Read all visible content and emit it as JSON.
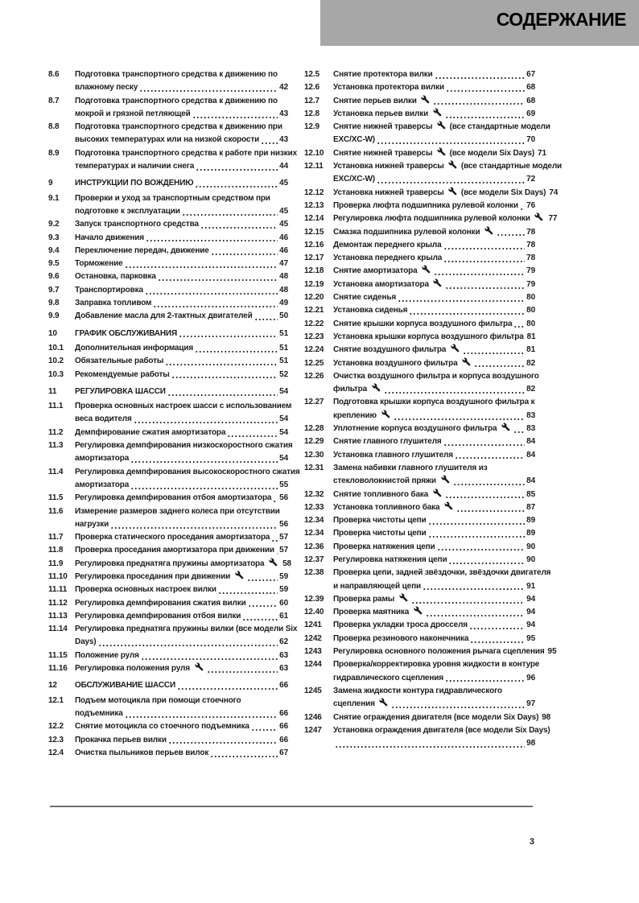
{
  "header": {
    "title": "СОДЕРЖАНИЕ"
  },
  "footer": {
    "page_number": "3"
  },
  "colors": {
    "header_bar": "#a7a7a7",
    "text": "#1b1b1b",
    "footer_rule": "#6f6f6f"
  },
  "icons": {
    "wrench": "wrench-icon"
  },
  "toc": {
    "columns": [
      {
        "entries": [
          {
            "num": "8.6",
            "lines": [
              "Подготовка транспортного средства к движению по",
              "влажному песку"
            ],
            "page": "42"
          },
          {
            "num": "8.7",
            "lines": [
              "Подготовка транспортного средства к движению по",
              "мокрой и грязной петляющей"
            ],
            "page": "43"
          },
          {
            "num": "8.8",
            "lines": [
              "Подготовка транспортного средства к движению при",
              "высоких температурах или на низкой скорости"
            ],
            "page": "43"
          },
          {
            "num": "8.9",
            "lines": [
              "Подготовка транспортного средства к работе при низких",
              "температурах и наличии снега"
            ],
            "page": "44"
          },
          {
            "num": "9",
            "lines": [
              "ИНСТРУКЦИИ ПО ВОЖДЕНИЮ"
            ],
            "page": "45",
            "chapter": true
          },
          {
            "num": "9.1",
            "lines": [
              "Проверки и уход за транспортным средством при",
              "подготовке к эксплуатации"
            ],
            "page": "45"
          },
          {
            "num": "9.2",
            "lines": [
              "Запуск транспортного средства"
            ],
            "page": "45"
          },
          {
            "num": "9.3",
            "lines": [
              "Начало движения"
            ],
            "page": "46"
          },
          {
            "num": "9.4",
            "lines": [
              "Переключение передач, движение"
            ],
            "page": "46"
          },
          {
            "num": "9.5",
            "lines": [
              "Торможение"
            ],
            "page": "47"
          },
          {
            "num": "9.6",
            "lines": [
              "Остановка, парковка"
            ],
            "page": "48"
          },
          {
            "num": "9.7",
            "lines": [
              "Транспортировка"
            ],
            "page": "48"
          },
          {
            "num": "9.8",
            "lines": [
              "Заправка топливом"
            ],
            "page": "49"
          },
          {
            "num": "9.9",
            "lines": [
              "Добавление масла для 2-тактных двигателей"
            ],
            "page": "50"
          },
          {
            "num": "10",
            "lines": [
              "ГРАФИК ОБСЛУЖИВАНИЯ"
            ],
            "page": "51",
            "chapter": true
          },
          {
            "num": "10.1",
            "lines": [
              "Дополнительная информация"
            ],
            "page": "51"
          },
          {
            "num": "10.2",
            "lines": [
              "Обязательные работы"
            ],
            "page": "51"
          },
          {
            "num": "10.3",
            "lines": [
              "Рекомендуемые работы"
            ],
            "page": "52"
          },
          {
            "num": "11",
            "lines": [
              "РЕГУЛИРОВКА ШАССИ"
            ],
            "page": "54",
            "chapter": true
          },
          {
            "num": "11.1",
            "lines": [
              "Проверка основных настроек шасси с использованием",
              "веса водителя"
            ],
            "page": "54"
          },
          {
            "num": "11.2",
            "lines": [
              "Демпфирование сжатия амортизатора"
            ],
            "page": "54"
          },
          {
            "num": "11.3",
            "lines": [
              "Регулировка демпфирования низкоскоростного сжатия",
              "амортизатора"
            ],
            "page": "54"
          },
          {
            "num": "11.4",
            "lines": [
              "Регулировка демпфирования высокоскоростного сжатия",
              "амортизатора"
            ],
            "page": "55"
          },
          {
            "num": "11.5",
            "lines": [
              "Регулировка демпфирования отбоя амортизатора"
            ],
            "page": "56"
          },
          {
            "num": "11.6",
            "lines": [
              "Измерение размеров заднего колеса при отсутствии",
              "нагрузки"
            ],
            "page": "56"
          },
          {
            "num": "11.7",
            "lines": [
              "Проверка статического проседания амортизатора"
            ],
            "page": "57"
          },
          {
            "num": "11.8",
            "lines": [
              "Проверка проседания амортизатора при движении"
            ],
            "page": "57"
          },
          {
            "num": "11.9",
            "lines": [
              "Регулировка преднатяга пружины амортизатора 🔧"
            ],
            "page": "58"
          },
          {
            "num": "11.10",
            "lines": [
              "Регулировка проседания при движении 🔧"
            ],
            "page": "59"
          },
          {
            "num": "11.11",
            "lines": [
              "Проверка основных настроек вилки"
            ],
            "page": "59"
          },
          {
            "num": "11.12",
            "lines": [
              "Регулировка демпфирования сжатия вилки"
            ],
            "page": "60"
          },
          {
            "num": "11.13",
            "lines": [
              "Регулировка демпфирования отбоя вилки"
            ],
            "page": "61"
          },
          {
            "num": "11.14",
            "lines": [
              "Регулировка преднатяга пружины вилки (все модели Six",
              "Days)"
            ],
            "page": "62"
          },
          {
            "num": "11.15",
            "lines": [
              "Положение руля"
            ],
            "page": "63"
          },
          {
            "num": "11.16",
            "lines": [
              "Регулировка положения руля 🔧"
            ],
            "page": "63"
          },
          {
            "num": "12",
            "lines": [
              "ОБСЛУЖИВАНИЕ ШАССИ"
            ],
            "page": "66",
            "chapter": true
          },
          {
            "num": "12.1",
            "lines": [
              "Подъем мотоцикла при помощи стоечного",
              "подъемника"
            ],
            "page": "66"
          },
          {
            "num": "12.2",
            "lines": [
              "Снятие мотоцикла со стоечного подъемника"
            ],
            "page": "66"
          },
          {
            "num": "12.3",
            "lines": [
              "Прокачка перьев вилки"
            ],
            "page": "66"
          },
          {
            "num": "12.4",
            "lines": [
              "Очистка пыльников перьев вилок"
            ],
            "page": "67"
          }
        ]
      },
      {
        "entries": [
          {
            "num": "12.5",
            "lines": [
              "Снятие протектора вилки"
            ],
            "page": "67"
          },
          {
            "num": "12.6",
            "lines": [
              "Установка протектора вилки"
            ],
            "page": "68"
          },
          {
            "num": "12.7",
            "lines": [
              "Снятие перьев вилки 🔧"
            ],
            "page": "68"
          },
          {
            "num": "12.8",
            "lines": [
              "Установка перьев вилки 🔧"
            ],
            "page": "69"
          },
          {
            "num": "12.9",
            "lines": [
              "Снятие нижней траверсы 🔧 (все стандартные модели",
              "EXC/XC-W)"
            ],
            "page": "70"
          },
          {
            "num": "12.10",
            "lines": [
              "Снятие нижней траверсы 🔧 (все модели Six Days)"
            ],
            "page": "71"
          },
          {
            "num": "12.11",
            "lines": [
              "Установка нижней траверсы 🔧 (все стандартные модели",
              "EXC/XC-W)"
            ],
            "page": "72"
          },
          {
            "num": "12.12",
            "lines": [
              "Установка нижней траверсы 🔧 (все модели Six Days)"
            ],
            "page": "74"
          },
          {
            "num": "12.13",
            "lines": [
              "Проверка люфта подшипника рулевой колонки"
            ],
            "page": "76"
          },
          {
            "num": "12.14",
            "lines": [
              "Регулировка люфта подшипника рулевой колонки 🔧"
            ],
            "page": "77"
          },
          {
            "num": "12.15",
            "lines": [
              "Смазка подшипника рулевой колонки 🔧"
            ],
            "page": "78"
          },
          {
            "num": "12.16",
            "lines": [
              "Демонтаж переднего крыла"
            ],
            "page": "78"
          },
          {
            "num": "12.17",
            "lines": [
              "Установка переднего крыла"
            ],
            "page": "78"
          },
          {
            "num": "12.18",
            "lines": [
              "Снятие амортизатора 🔧"
            ],
            "page": "79"
          },
          {
            "num": "12.19",
            "lines": [
              "Установка амортизатора 🔧"
            ],
            "page": "79"
          },
          {
            "num": "12.20",
            "lines": [
              "Снятие сиденья"
            ],
            "page": "80"
          },
          {
            "num": "12.21",
            "lines": [
              "Установка сиденья"
            ],
            "page": "80"
          },
          {
            "num": "12.22",
            "lines": [
              "Снятие крышки корпуса воздушного фильтра"
            ],
            "page": "80"
          },
          {
            "num": "12.23",
            "lines": [
              "Установка крышки корпуса воздушного фильтра"
            ],
            "page": "81"
          },
          {
            "num": "12.24",
            "lines": [
              "Снятие воздушного фильтра 🔧"
            ],
            "page": "81"
          },
          {
            "num": "12.25",
            "lines": [
              "Установка воздушного фильтра 🔧"
            ],
            "page": "82"
          },
          {
            "num": "12.26",
            "lines": [
              "Очистка воздушного фильтра и корпуса воздушного",
              "фильтра 🔧"
            ],
            "page": "82"
          },
          {
            "num": "12.27",
            "lines": [
              "Подготовка крышки корпуса воздушного фильтра к",
              "креплению 🔧"
            ],
            "page": "83"
          },
          {
            "num": "12.28",
            "lines": [
              "Уплотнение корпуса воздушного фильтра 🔧"
            ],
            "page": "83"
          },
          {
            "num": "12.29",
            "lines": [
              "Снятие главного глушителя"
            ],
            "page": "84"
          },
          {
            "num": "12.30",
            "lines": [
              "Установка главного глушителя"
            ],
            "page": "84"
          },
          {
            "num": "12.31",
            "lines": [
              "Замена набивки главного глушителя из",
              "стекловолокнистой пряжи 🔧"
            ],
            "page": "84"
          },
          {
            "num": "12.32",
            "lines": [
              "Снятие топливного бака 🔧"
            ],
            "page": "85"
          },
          {
            "num": "12.33",
            "lines": [
              "Установка топливного бака 🔧"
            ],
            "page": "87"
          },
          {
            "num": "12.34",
            "lines": [
              "Проверка чистоты цепи"
            ],
            "page": "89"
          },
          {
            "num": "12.34",
            "lines": [
              "Проверка чистоты цепи"
            ],
            "page": "89"
          },
          {
            "num": "12.36",
            "lines": [
              "Проверка натяжения цепи"
            ],
            "page": "90"
          },
          {
            "num": "12.37",
            "lines": [
              "Регулировка натяжения цепи"
            ],
            "page": "90"
          },
          {
            "num": "12.38",
            "lines": [
              "Проверка цепи, задней звёздочки, звёздочки двигателя",
              "и направляющей цепи"
            ],
            "page": "91"
          },
          {
            "num": "12.39",
            "lines": [
              "Проверка рамы 🔧"
            ],
            "page": "94"
          },
          {
            "num": "12.40",
            "lines": [
              "Проверка маятника 🔧"
            ],
            "page": "94"
          },
          {
            "num": "1241",
            "lines": [
              "Проверка укладки троса дросселя"
            ],
            "page": "94"
          },
          {
            "num": "1242",
            "lines": [
              "Проверка резинового наконечника"
            ],
            "page": "95"
          },
          {
            "num": "1243",
            "lines": [
              "Регулировка основного положения рычага сцепления"
            ],
            "page": "95"
          },
          {
            "num": "1244",
            "lines": [
              "Проверка/корректировка уровня жидкости в контуре",
              "гидравлического сцепления"
            ],
            "page": "96"
          },
          {
            "num": "1245",
            "lines": [
              "Замена жидкости контура гидравлического",
              "сцепления 🔧"
            ],
            "page": "97"
          },
          {
            "num": "1246",
            "lines": [
              "Снятие ограждения двигателя (все модели Six Days)"
            ],
            "page": "98"
          },
          {
            "num": "1247",
            "lines": [
              "Установка ограждения двигателя (все модели Six Days)",
              ""
            ],
            "page": "98"
          }
        ]
      }
    ]
  }
}
